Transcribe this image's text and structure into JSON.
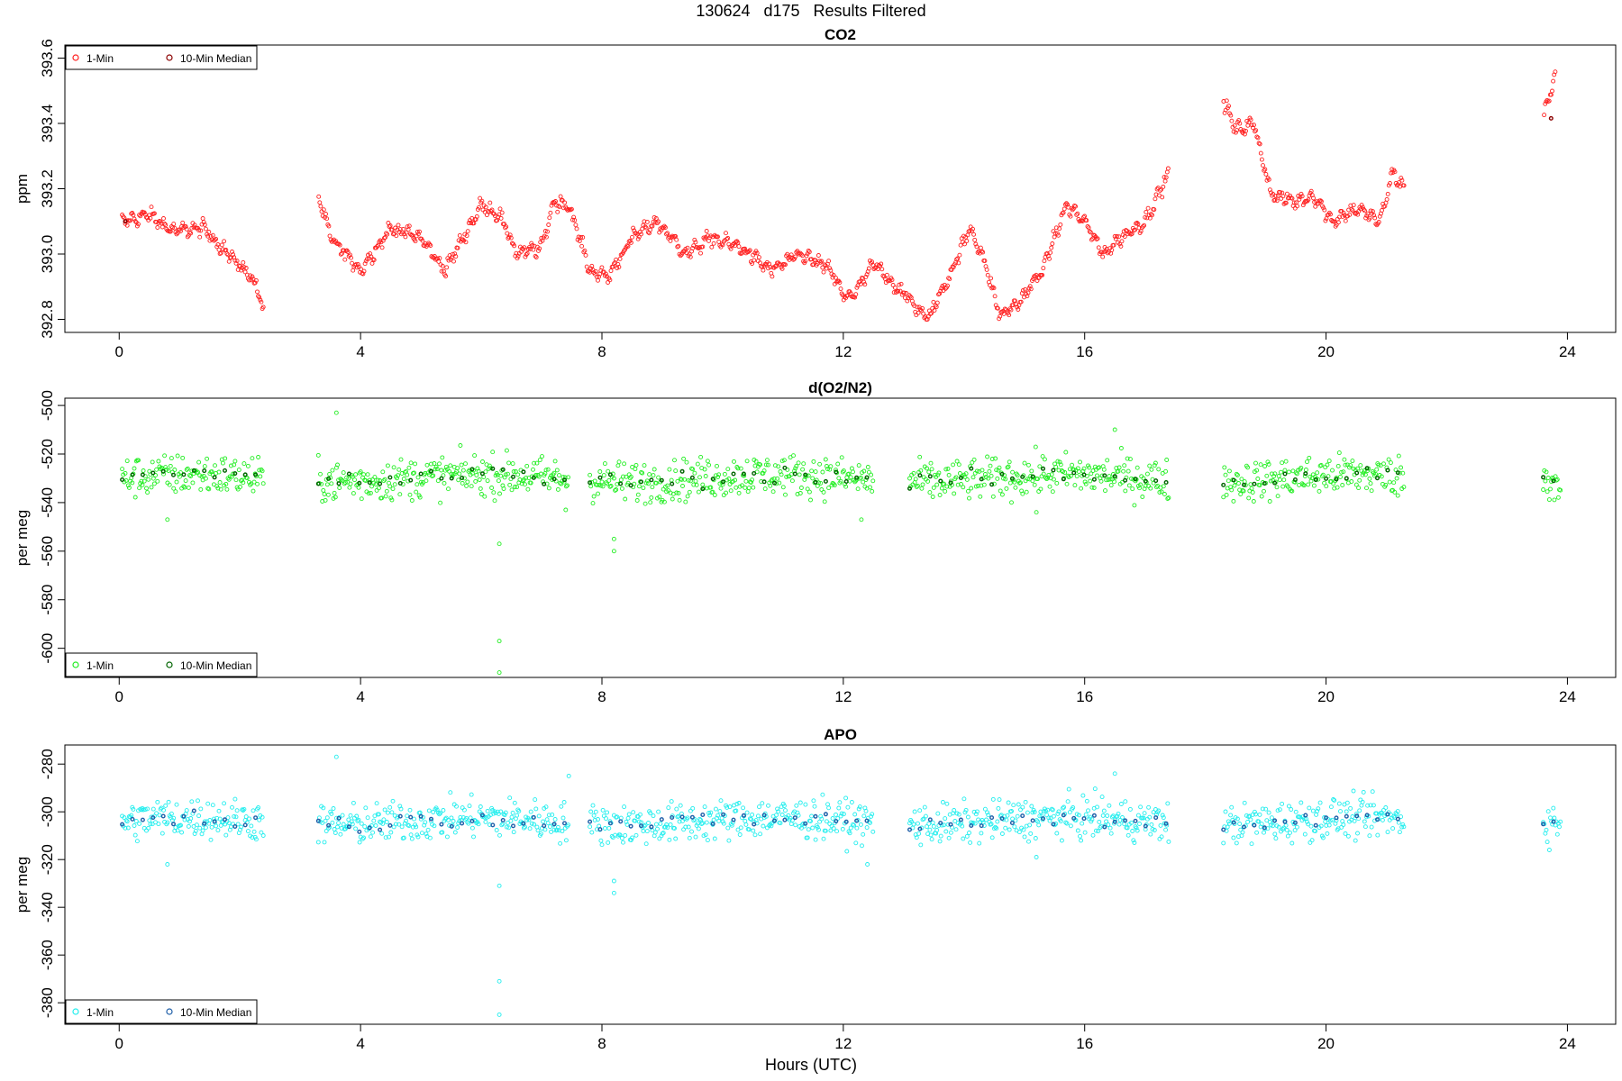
{
  "figure": {
    "title": "130624   d175   Results Filtered",
    "xlabel": "Hours (UTC)"
  },
  "chart_data": [
    {
      "type": "scatter",
      "title": "CO2",
      "ylabel": "ppm",
      "xlim": [
        -0.9,
        24.8
      ],
      "ylim": [
        392.76,
        393.64
      ],
      "x_ticks": [
        0,
        4,
        8,
        12,
        16,
        20,
        24
      ],
      "y_ticks": [
        392.8,
        393.0,
        393.2,
        393.4,
        393.6
      ],
      "y_tick_labels": [
        "392.8",
        "393.0",
        "393.2",
        "393.4",
        "393.6"
      ],
      "legend": {
        "placement": "top-left",
        "entries": [
          "1-Min",
          "10-Min Median"
        ]
      },
      "series": [
        {
          "name": "1-Min",
          "color": "#ff2020",
          "anchors": [
            [
              0.05,
              393.1
            ],
            [
              0.5,
              393.12
            ],
            [
              0.9,
              393.07
            ],
            [
              1.4,
              393.08
            ],
            [
              1.8,
              393.0
            ],
            [
              2.2,
              392.93
            ],
            [
              2.4,
              392.83
            ],
            [
              3.3,
              393.18
            ],
            [
              3.5,
              393.05
            ],
            [
              4.0,
              392.95
            ],
            [
              4.5,
              393.08
            ],
            [
              5.0,
              393.05
            ],
            [
              5.4,
              392.95
            ],
            [
              6.0,
              393.15
            ],
            [
              6.3,
              393.12
            ],
            [
              6.6,
              393.0
            ],
            [
              7.0,
              393.02
            ],
            [
              7.2,
              393.16
            ],
            [
              7.45,
              393.15
            ],
            [
              7.8,
              392.95
            ],
            [
              8.1,
              392.93
            ],
            [
              8.5,
              393.05
            ],
            [
              8.9,
              393.1
            ],
            [
              9.4,
              393.0
            ],
            [
              9.8,
              393.05
            ],
            [
              10.3,
              393.02
            ],
            [
              10.8,
              392.95
            ],
            [
              11.3,
              393.0
            ],
            [
              11.8,
              392.95
            ],
            [
              12.0,
              392.87
            ],
            [
              12.2,
              392.88
            ],
            [
              12.5,
              392.97
            ],
            [
              13.1,
              392.86
            ],
            [
              13.4,
              392.8
            ],
            [
              13.8,
              392.95
            ],
            [
              14.1,
              393.08
            ],
            [
              14.3,
              393.0
            ],
            [
              14.6,
              392.81
            ],
            [
              14.9,
              392.85
            ],
            [
              15.3,
              392.95
            ],
            [
              15.7,
              393.15
            ],
            [
              16.0,
              393.1
            ],
            [
              16.3,
              393.0
            ],
            [
              16.6,
              393.05
            ],
            [
              17.0,
              393.1
            ],
            [
              17.4,
              393.25
            ],
            [
              18.3,
              393.47
            ],
            [
              18.5,
              393.38
            ],
            [
              18.8,
              393.4
            ],
            [
              19.1,
              393.18
            ],
            [
              19.5,
              393.16
            ],
            [
              19.8,
              393.18
            ],
            [
              20.1,
              393.1
            ],
            [
              20.5,
              393.14
            ],
            [
              20.9,
              393.1
            ],
            [
              21.1,
              393.25
            ],
            [
              21.3,
              393.2
            ],
            [
              23.6,
              393.42
            ],
            [
              23.8,
              393.55
            ]
          ]
        },
        {
          "name": "10-Min Median",
          "color": "#8b0000",
          "anchors": [
            [
              0.1,
              393.1
            ],
            [
              1.0,
              393.07
            ],
            [
              2.0,
              392.98
            ],
            [
              3.4,
              393.08
            ],
            [
              4.5,
              393.07
            ],
            [
              6.0,
              393.12
            ],
            [
              7.3,
              393.15
            ],
            [
              8.5,
              393.04
            ],
            [
              10.0,
              393.01
            ],
            [
              11.5,
              392.97
            ],
            [
              13.3,
              392.83
            ],
            [
              15.0,
              392.86
            ],
            [
              16.5,
              393.04
            ],
            [
              17.3,
              393.22
            ],
            [
              18.4,
              393.43
            ],
            [
              19.5,
              393.16
            ],
            [
              20.9,
              393.08
            ],
            [
              23.7,
              393.39
            ],
            [
              23.9,
              393.56
            ]
          ]
        }
      ]
    },
    {
      "type": "scatter",
      "title": "d(O2/N2)",
      "ylabel": "per meg",
      "xlim": [
        -0.9,
        24.8
      ],
      "ylim": [
        -612,
        -497
      ],
      "x_ticks": [
        0,
        4,
        8,
        12,
        16,
        20,
        24
      ],
      "y_ticks": [
        -600,
        -580,
        -560,
        -540,
        -520,
        -500
      ],
      "y_tick_labels": [
        "-600",
        "-580",
        "-560",
        "-540",
        "-520",
        "-500"
      ],
      "legend": {
        "placement": "bottom-left",
        "entries": [
          "1-Min",
          "10-Min Median"
        ]
      },
      "series": [
        {
          "name": "1-Min",
          "color": "#22ee22",
          "base": -530,
          "spread": 6,
          "segments": [
            [
              0.05,
              2.4
            ],
            [
              3.3,
              7.45
            ],
            [
              7.8,
              12.5
            ],
            [
              13.1,
              17.4
            ],
            [
              18.3,
              21.3
            ],
            [
              23.6,
              23.9
            ]
          ],
          "outliers": [
            [
              3.6,
              -503
            ],
            [
              6.3,
              -557
            ],
            [
              6.3,
              -597
            ],
            [
              6.3,
              -610
            ],
            [
              8.2,
              -555
            ],
            [
              8.2,
              -560
            ],
            [
              7.4,
              -543
            ],
            [
              12.3,
              -547
            ],
            [
              16.5,
              -510
            ],
            [
              15.2,
              -544
            ],
            [
              0.8,
              -547
            ]
          ]
        },
        {
          "name": "10-Min Median",
          "color": "#006400",
          "base": -530,
          "spread": 2.5,
          "segments": [
            [
              0.05,
              2.4
            ],
            [
              3.3,
              7.45
            ],
            [
              7.8,
              12.5
            ],
            [
              13.1,
              17.4
            ],
            [
              18.3,
              21.3
            ],
            [
              23.6,
              23.9
            ]
          ]
        }
      ]
    },
    {
      "type": "scatter",
      "title": "APO",
      "ylabel": "per meg",
      "xlim": [
        -0.9,
        24.8
      ],
      "ylim": [
        -389,
        -272
      ],
      "x_ticks": [
        0,
        4,
        8,
        12,
        16,
        20,
        24
      ],
      "y_ticks": [
        -380,
        -360,
        -340,
        -320,
        -300,
        -280
      ],
      "y_tick_labels": [
        "-380",
        "-360",
        "-340",
        "-320",
        "-300",
        "-280"
      ],
      "legend": {
        "placement": "bottom-left",
        "entries": [
          "1-Min",
          "10-Min Median"
        ]
      },
      "series": [
        {
          "name": "1-Min",
          "color": "#22eeee",
          "base": -304,
          "spread": 6,
          "segments": [
            [
              0.05,
              2.4
            ],
            [
              3.3,
              7.45
            ],
            [
              7.8,
              12.5
            ],
            [
              13.1,
              17.4
            ],
            [
              18.3,
              21.3
            ],
            [
              23.6,
              23.9
            ]
          ],
          "outliers": [
            [
              3.6,
              -277
            ],
            [
              6.3,
              -331
            ],
            [
              6.3,
              -371
            ],
            [
              6.3,
              -385
            ],
            [
              8.2,
              -329
            ],
            [
              8.2,
              -334
            ],
            [
              0.8,
              -322
            ],
            [
              12.4,
              -322
            ],
            [
              16.5,
              -284
            ],
            [
              7.45,
              -285
            ],
            [
              15.2,
              -319
            ]
          ]
        },
        {
          "name": "10-Min Median",
          "color": "#1f5fa8",
          "base": -304,
          "spread": 2.5,
          "segments": [
            [
              0.05,
              2.4
            ],
            [
              3.3,
              7.45
            ],
            [
              7.8,
              12.5
            ],
            [
              13.1,
              17.4
            ],
            [
              18.3,
              21.3
            ],
            [
              23.6,
              23.9
            ]
          ]
        }
      ]
    }
  ]
}
